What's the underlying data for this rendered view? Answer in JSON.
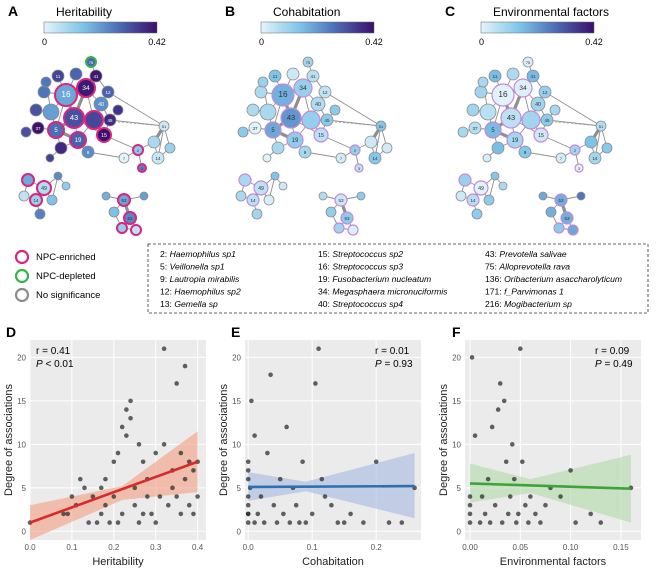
{
  "panels": {
    "A": {
      "letter": "A",
      "title": "Heritability",
      "min": "0",
      "max": "0.42"
    },
    "B": {
      "letter": "B",
      "title": "Cohabitation",
      "min": "0",
      "max": "0.42"
    },
    "C": {
      "letter": "C",
      "title": "Environmental factors",
      "min": "0",
      "max": "0.42"
    }
  },
  "colorbar": {
    "low": "#d8f0fa",
    "mid": "#5aa4d8",
    "high": "#3b0e6b"
  },
  "node_legend": [
    {
      "label": "NPC-enriched",
      "color": "#d9257f"
    },
    {
      "label": "NPC-depleted",
      "color": "#38b24a"
    },
    {
      "label": "No significance",
      "color": "#8c8c8c"
    }
  ],
  "taxa_key": [
    [
      "2: ",
      "Haemophilus sp1"
    ],
    [
      "5: ",
      "Veillonella sp1"
    ],
    [
      "9: ",
      "Lautropia mirabilis"
    ],
    [
      "12: ",
      "Haemophilus sp2"
    ],
    [
      "13: ",
      "Gemella sp"
    ],
    [
      "15: ",
      "Streptococcus sp2"
    ],
    [
      "16: ",
      "Streptococcus sp3"
    ],
    [
      "19: ",
      "Fusobacterium nucleatum"
    ],
    [
      "34: ",
      "Megasphaera micronuciformis"
    ],
    [
      "40: ",
      "Streptococcus sp4"
    ],
    [
      "43: ",
      "Prevotella salivae"
    ],
    [
      "75: ",
      "Alloprevotella rava"
    ],
    [
      "136: ",
      "Oribacterium asaccharolyticum"
    ],
    [
      "171: ",
      "f_Parvimonas 1"
    ],
    [
      "216: ",
      "Mogibacterium sp"
    ]
  ],
  "chart_data": [
    {
      "panel": "D",
      "type": "scatter",
      "xlabel": "Heritability",
      "ylabel": "Degree of associations",
      "xlim": [
        0,
        0.42
      ],
      "ylim": [
        -1,
        22
      ],
      "xticks": [
        "0.0",
        "0.1",
        "0.2",
        "0.3",
        "0.4"
      ],
      "xtick_values": [
        0,
        0.1,
        0.2,
        0.3,
        0.4
      ],
      "yticks": [
        "0",
        "5",
        "10",
        "15",
        "20"
      ],
      "ytick_values": [
        0,
        5,
        10,
        15,
        20
      ],
      "stat_r": "r = 0.41",
      "stat_p_label": "P",
      "stat_p_value": " < 0.01",
      "fit": {
        "x0": 0,
        "y0": 1,
        "x1": 0.4,
        "y1": 8,
        "band_lo0": -1,
        "band_hi0": 3,
        "band_lo1": 4.5,
        "band_hi1": 11.5,
        "band_mid_lo": 3.6,
        "band_mid_hi": 5.2,
        "band_mid_x": 0.22
      },
      "fit_color": "#d42c2c",
      "band_color": "#f3a48a",
      "points": [
        [
          0,
          1
        ],
        [
          0.08,
          2
        ],
        [
          0.09,
          2
        ],
        [
          0.1,
          4
        ],
        [
          0.11,
          3
        ],
        [
          0.12,
          6
        ],
        [
          0.13,
          5
        ],
        [
          0.14,
          1
        ],
        [
          0.15,
          4
        ],
        [
          0.16,
          1
        ],
        [
          0.17,
          2
        ],
        [
          0.17,
          5
        ],
        [
          0.18,
          6
        ],
        [
          0.18,
          3
        ],
        [
          0.19,
          1
        ],
        [
          0.2,
          4
        ],
        [
          0.2,
          8
        ],
        [
          0.21,
          1
        ],
        [
          0.21,
          9
        ],
        [
          0.22,
          12
        ],
        [
          0.22,
          2
        ],
        [
          0.23,
          11
        ],
        [
          0.23,
          14
        ],
        [
          0.24,
          13
        ],
        [
          0.24,
          15
        ],
        [
          0.25,
          5
        ],
        [
          0.25,
          3
        ],
        [
          0.26,
          10
        ],
        [
          0.26,
          1
        ],
        [
          0.27,
          8
        ],
        [
          0.27,
          2
        ],
        [
          0.28,
          6
        ],
        [
          0.28,
          4
        ],
        [
          0.29,
          2
        ],
        [
          0.3,
          9
        ],
        [
          0.3,
          1
        ],
        [
          0.31,
          4
        ],
        [
          0.32,
          21
        ],
        [
          0.32,
          10
        ],
        [
          0.33,
          3
        ],
        [
          0.34,
          7
        ],
        [
          0.34,
          5
        ],
        [
          0.35,
          4
        ],
        [
          0.35,
          17
        ],
        [
          0.36,
          9
        ],
        [
          0.36,
          2
        ],
        [
          0.37,
          6
        ],
        [
          0.37,
          19
        ],
        [
          0.38,
          8
        ],
        [
          0.38,
          3
        ],
        [
          0.39,
          7
        ],
        [
          0.39,
          2
        ],
        [
          0.4,
          8
        ],
        [
          0.4,
          4
        ]
      ]
    },
    {
      "panel": "E",
      "type": "scatter",
      "xlabel": "Cohabitation",
      "ylabel": "Degree of associations",
      "xlim": [
        -0.005,
        0.27
      ],
      "ylim": [
        -1,
        22
      ],
      "xticks": [
        "0.0",
        "0.1",
        "0.2"
      ],
      "xtick_values": [
        0,
        0.1,
        0.2
      ],
      "yticks": [
        "0",
        "5",
        "10",
        "15",
        "20"
      ],
      "ytick_values": [
        0,
        5,
        10,
        15,
        20
      ],
      "stat_r": "r = 0.01",
      "stat_p_label": "P",
      "stat_p_value": " = 0.93",
      "fit": {
        "x0": 0,
        "y0": 5.1,
        "x1": 0.26,
        "y1": 5.2,
        "band_lo0": 3.5,
        "band_hi0": 6.8,
        "band_lo1": 1.5,
        "band_hi1": 9,
        "band_mid_lo": 4.6,
        "band_mid_hi": 5.7,
        "band_mid_x": 0.09
      },
      "fit_color": "#2e6fb0",
      "band_color": "#a9bde0",
      "points": [
        [
          0,
          1
        ],
        [
          0,
          2
        ],
        [
          0,
          3
        ],
        [
          0,
          4
        ],
        [
          0,
          6
        ],
        [
          0,
          7
        ],
        [
          0,
          8
        ],
        [
          0,
          2
        ],
        [
          0.003,
          5
        ],
        [
          0.005,
          15
        ],
        [
          0.01,
          11
        ],
        [
          0.01,
          1
        ],
        [
          0.015,
          2
        ],
        [
          0.02,
          4
        ],
        [
          0.025,
          1
        ],
        [
          0.03,
          9
        ],
        [
          0.035,
          18
        ],
        [
          0.04,
          3
        ],
        [
          0.045,
          1
        ],
        [
          0.05,
          6
        ],
        [
          0.055,
          2
        ],
        [
          0.06,
          12
        ],
        [
          0.065,
          1
        ],
        [
          0.07,
          5
        ],
        [
          0.075,
          3
        ],
        [
          0.08,
          1
        ],
        [
          0.085,
          8
        ],
        [
          0.09,
          1
        ],
        [
          0.1,
          2
        ],
        [
          0.105,
          17
        ],
        [
          0.11,
          21
        ],
        [
          0.115,
          6
        ],
        [
          0.12,
          4
        ],
        [
          0.13,
          3
        ],
        [
          0.14,
          1
        ],
        [
          0.15,
          1
        ],
        [
          0.16,
          2
        ],
        [
          0.18,
          1
        ],
        [
          0.2,
          8
        ],
        [
          0.22,
          1
        ],
        [
          0.24,
          1
        ],
        [
          0.26,
          5
        ]
      ]
    },
    {
      "panel": "F",
      "type": "scatter",
      "xlabel": "Environmental factors",
      "ylabel": "Degree of associations",
      "xlim": [
        -0.005,
        0.17
      ],
      "ylim": [
        -1,
        22
      ],
      "xticks": [
        "0.00",
        "0.05",
        "0.10",
        "0.15"
      ],
      "xtick_values": [
        0,
        0.05,
        0.1,
        0.15
      ],
      "yticks": [
        "0",
        "5",
        "10",
        "15",
        "20"
      ],
      "ytick_values": [
        0,
        5,
        10,
        15,
        20
      ],
      "stat_r": "r = 0.09",
      "stat_p_label": "P",
      "stat_p_value": " = 0.49",
      "fit": {
        "x0": 0,
        "y0": 5.5,
        "x1": 0.16,
        "y1": 4.9,
        "band_lo0": 3.3,
        "band_hi0": 7.8,
        "band_lo1": 1,
        "band_hi1": 8.8,
        "band_mid_lo": 4.4,
        "band_mid_hi": 6,
        "band_mid_x": 0.06
      },
      "fit_color": "#3fa23a",
      "band_color": "#b6dcae",
      "points": [
        [
          0,
          1
        ],
        [
          0,
          2
        ],
        [
          0,
          3
        ],
        [
          0,
          4
        ],
        [
          0.002,
          20
        ],
        [
          0.005,
          11
        ],
        [
          0.01,
          1
        ],
        [
          0.012,
          4
        ],
        [
          0.015,
          2
        ],
        [
          0.018,
          6
        ],
        [
          0.02,
          1
        ],
        [
          0.022,
          12
        ],
        [
          0.025,
          3
        ],
        [
          0.028,
          14
        ],
        [
          0.03,
          17
        ],
        [
          0.032,
          1
        ],
        [
          0.034,
          15
        ],
        [
          0.036,
          8
        ],
        [
          0.038,
          2
        ],
        [
          0.04,
          4
        ],
        [
          0.042,
          10
        ],
        [
          0.044,
          6
        ],
        [
          0.046,
          1
        ],
        [
          0.048,
          2
        ],
        [
          0.05,
          21
        ],
        [
          0.052,
          8
        ],
        [
          0.055,
          3
        ],
        [
          0.058,
          1
        ],
        [
          0.06,
          4
        ],
        [
          0.065,
          2
        ],
        [
          0.07,
          1
        ],
        [
          0.075,
          3
        ],
        [
          0.08,
          5
        ],
        [
          0.09,
          4
        ],
        [
          0.1,
          7
        ],
        [
          0.105,
          1
        ],
        [
          0.12,
          2
        ],
        [
          0.13,
          1
        ],
        [
          0.16,
          5
        ]
      ]
    }
  ]
}
